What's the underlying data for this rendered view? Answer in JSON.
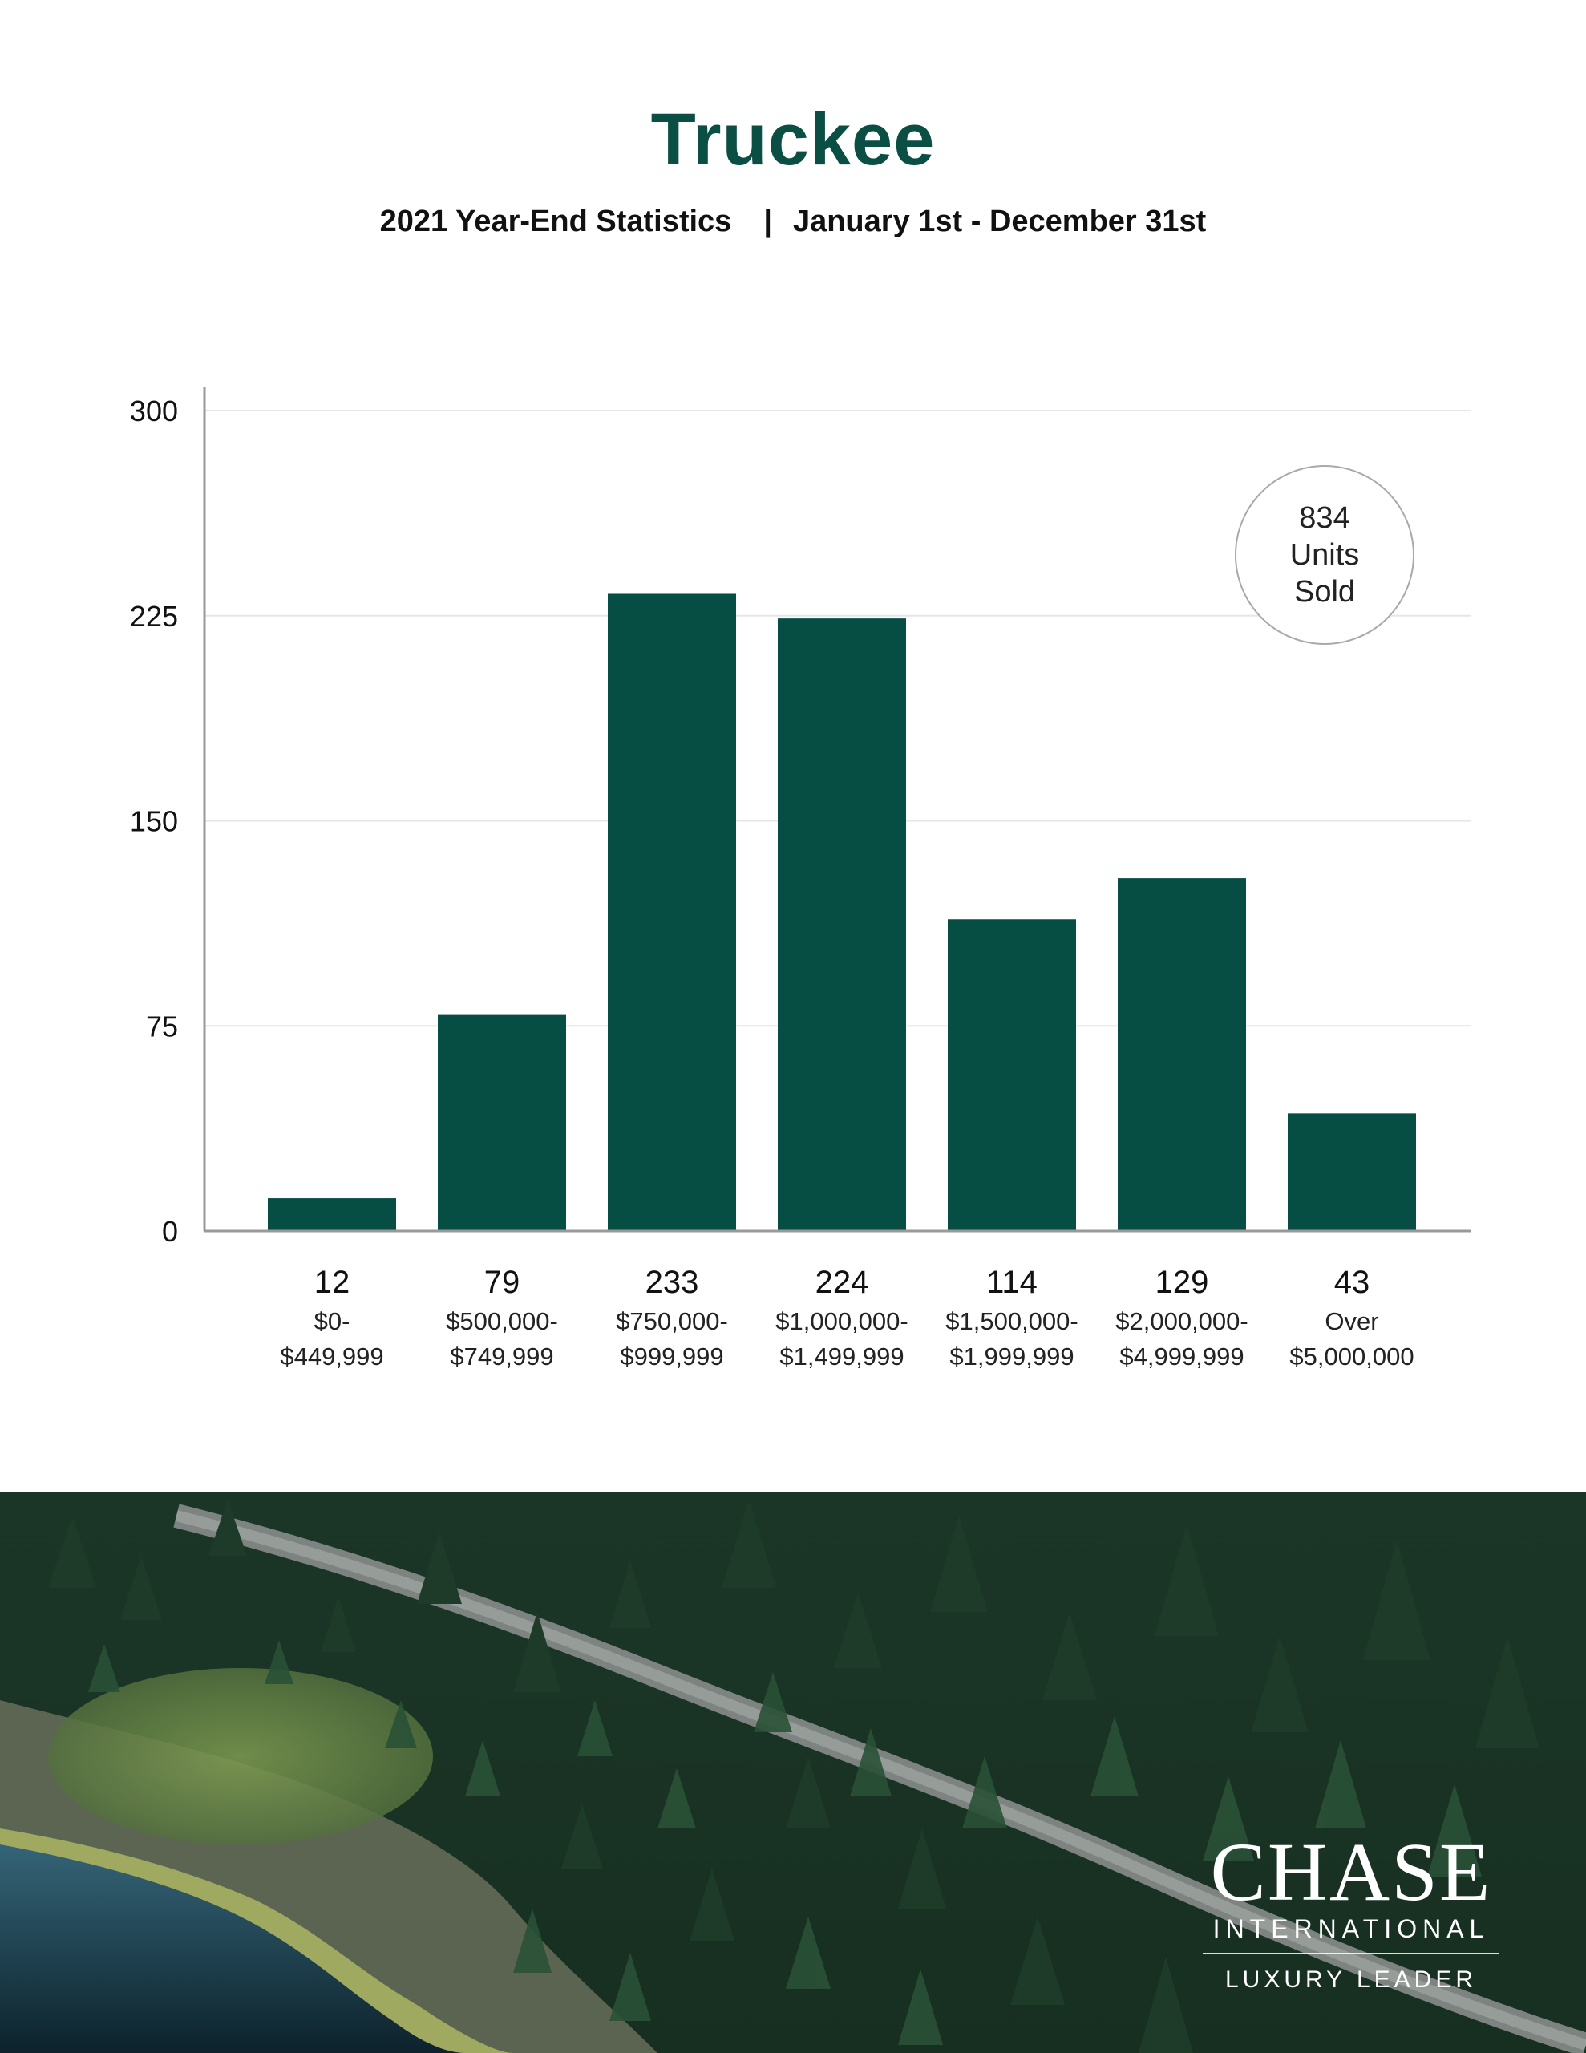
{
  "header": {
    "title": "Truckee",
    "subtitle_left": "2021 Year-End Statistics",
    "subtitle_separator": "|",
    "subtitle_right": "January 1st - December 31st"
  },
  "summary": {
    "value": "834",
    "line1": "Units",
    "line2": "Sold"
  },
  "logo": {
    "word": "CHASE",
    "sub": "INTERNATIONAL",
    "tag": "LUXURY LEADER"
  },
  "colors": {
    "accent": "#0b4f44",
    "bar": "#064d43",
    "grid": "#e6e6e6",
    "axis": "#999999"
  },
  "chart_data": {
    "type": "bar",
    "title": "",
    "xlabel": "",
    "ylabel": "",
    "ylim": [
      0,
      300
    ],
    "yticks": [
      0,
      75,
      150,
      225,
      300
    ],
    "grid": true,
    "categories": [
      [
        "$0-",
        "$449,999"
      ],
      [
        "$500,000-",
        "$749,999"
      ],
      [
        "$750,000-",
        "$999,999"
      ],
      [
        "$1,000,000-",
        "$1,499,999"
      ],
      [
        "$1,500,000-",
        "$1,999,999"
      ],
      [
        "$2,000,000-",
        "$4,999,999"
      ],
      [
        "Over",
        "$5,000,000"
      ]
    ],
    "values": [
      12,
      79,
      233,
      224,
      114,
      129,
      43
    ],
    "value_labels": [
      "12",
      "79",
      "233",
      "224",
      "114",
      "129",
      "43"
    ]
  }
}
